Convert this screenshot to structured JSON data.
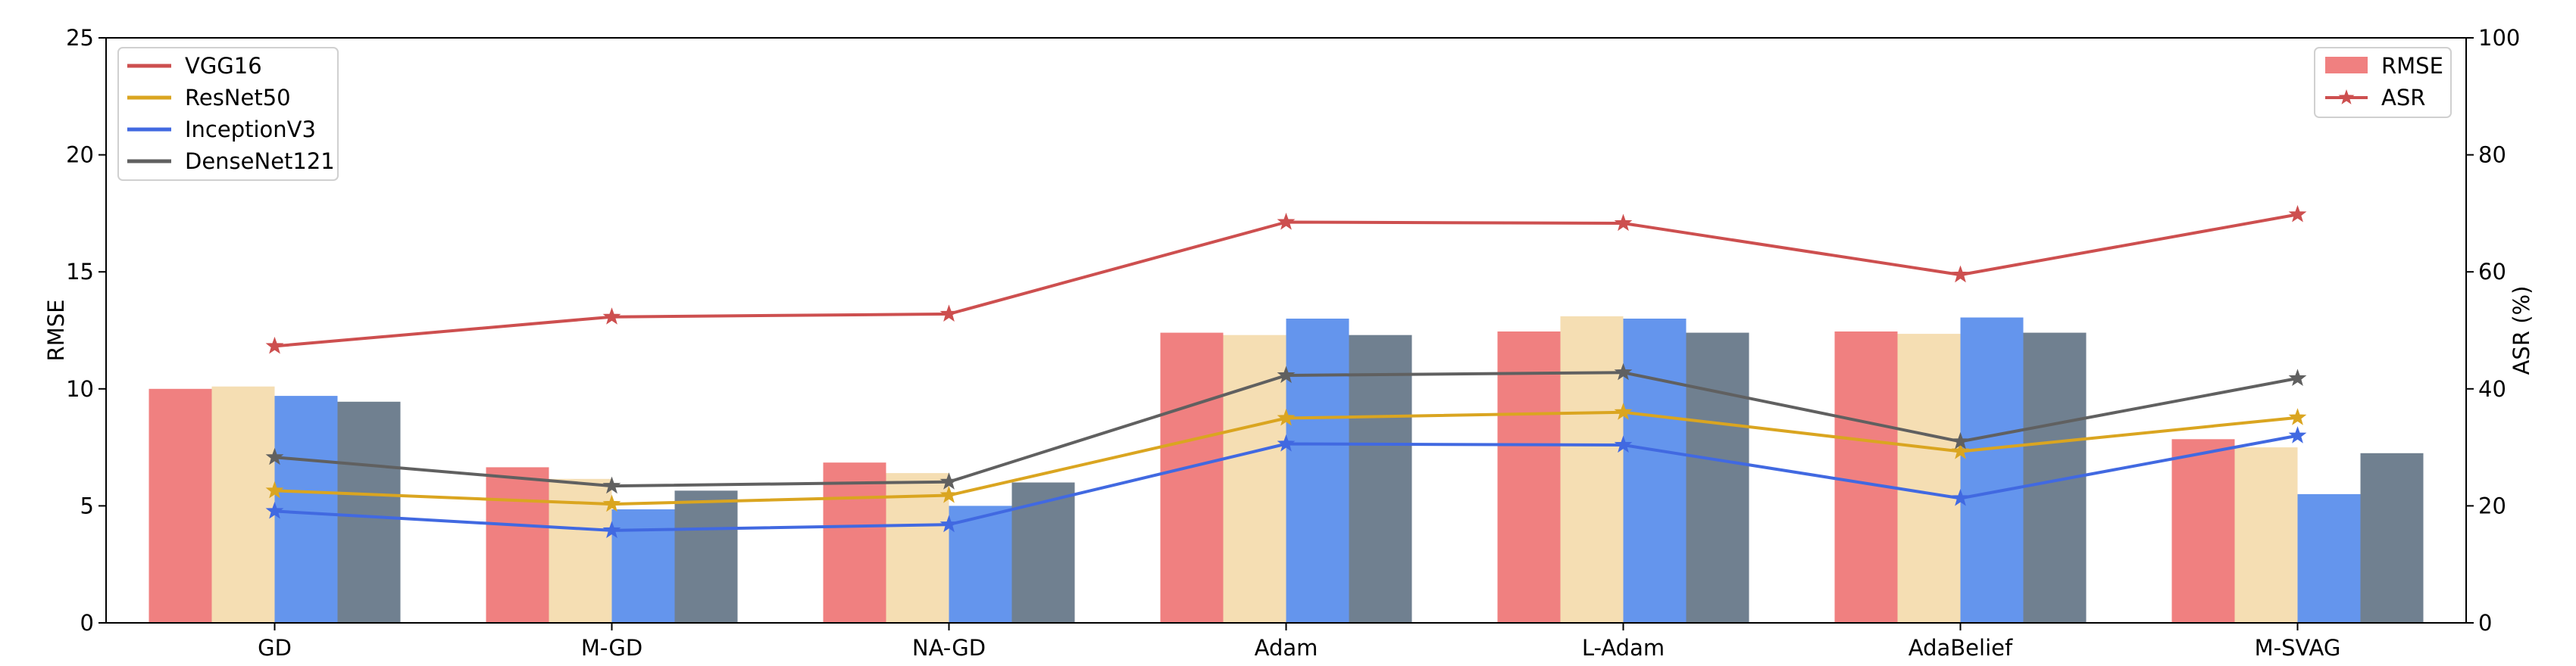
{
  "chart_data": {
    "type": "bar",
    "categories": [
      "GD",
      "M-GD",
      "NA-GD",
      "Adam",
      "L-Adam",
      "AdaBelief",
      "M-SVAG"
    ],
    "ylabel_left": "RMSE",
    "ylabel_right": "ASR (%)",
    "ylim_left": [
      0,
      25
    ],
    "ylim_right": [
      0,
      100
    ],
    "yticks_left": [
      0,
      5,
      10,
      15,
      20,
      25
    ],
    "yticks_right": [
      0,
      20,
      40,
      60,
      80,
      100
    ],
    "grid": false,
    "bar_series": [
      {
        "name": "VGG16",
        "color": "#F08080",
        "values": [
          10.0,
          6.65,
          6.85,
          12.4,
          12.45,
          12.45,
          7.85
        ]
      },
      {
        "name": "ResNet50",
        "color": "#F5DEB3",
        "values": [
          10.1,
          6.15,
          6.4,
          12.3,
          13.1,
          12.35,
          7.5
        ]
      },
      {
        "name": "InceptionV3",
        "color": "#6495ED",
        "values": [
          9.7,
          4.85,
          5.0,
          13.0,
          13.0,
          13.05,
          5.5
        ]
      },
      {
        "name": "DenseNet121",
        "color": "#708090",
        "values": [
          9.45,
          5.65,
          6.0,
          12.3,
          12.4,
          12.4,
          7.25
        ]
      }
    ],
    "line_series": [
      {
        "name": "VGG16",
        "color": "#CD4F4F",
        "values": [
          47.3,
          52.3,
          52.8,
          68.5,
          68.3,
          59.5,
          69.8
        ]
      },
      {
        "name": "ResNet50",
        "color": "#DAA520",
        "values": [
          22.6,
          20.3,
          21.8,
          35.0,
          36.0,
          29.3,
          35.1
        ]
      },
      {
        "name": "InceptionV3",
        "color": "#4169E1",
        "values": [
          19.1,
          15.8,
          16.8,
          30.6,
          30.4,
          21.3,
          32.0
        ]
      },
      {
        "name": "DenseNet121",
        "color": "#606060",
        "values": [
          28.3,
          23.4,
          24.1,
          42.3,
          42.8,
          31.0,
          41.8
        ]
      }
    ],
    "legend_models": {
      "placement": "upper-left",
      "entries": [
        {
          "label": "VGG16",
          "color": "#CD4F4F"
        },
        {
          "label": "ResNet50",
          "color": "#DAA520"
        },
        {
          "label": "InceptionV3",
          "color": "#4169E1"
        },
        {
          "label": "DenseNet121",
          "color": "#606060"
        }
      ]
    },
    "legend_metrics": {
      "placement": "upper-right",
      "rmse_label": "RMSE",
      "asr_label": "ASR",
      "rmse_color": "#F08080",
      "asr_color": "#CD4F4F"
    }
  }
}
